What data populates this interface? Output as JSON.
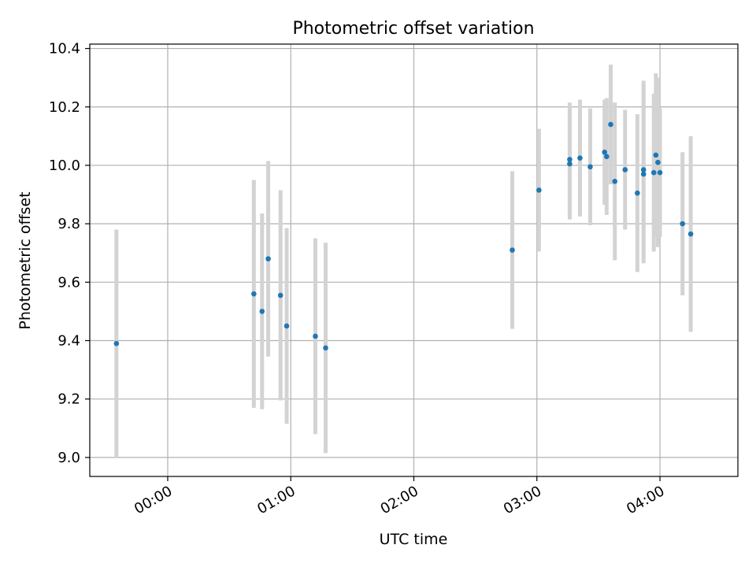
{
  "chart_data": {
    "type": "scatter",
    "title": "Photometric offset variation",
    "xlabel": "UTC time",
    "ylabel": "Photometric offset",
    "x_unit": "UTC time (HH:MM)",
    "xlim": [
      "23:22",
      "04:38"
    ],
    "ylim": [
      8.935,
      10.415
    ],
    "xticks": [
      "00:00",
      "01:00",
      "02:00",
      "03:00",
      "04:00"
    ],
    "yticks": [
      "9.0",
      "9.2",
      "9.4",
      "9.6",
      "9.8",
      "10.0",
      "10.2",
      "10.4"
    ],
    "grid": true,
    "legend": "none",
    "colors": {
      "points": "#1f77b4",
      "errorbars": "#d3d3d3",
      "grid": "#b0b0b0"
    },
    "points": [
      {
        "x": "23:35",
        "y": 9.39,
        "yerr": 0.39
      },
      {
        "x": "00:42",
        "y": 9.56,
        "yerr": 0.39
      },
      {
        "x": "00:46",
        "y": 9.5,
        "yerr": 0.335
      },
      {
        "x": "00:55",
        "y": 9.555,
        "yerr": 0.36
      },
      {
        "x": "00:49",
        "y": 9.68,
        "yerr": 0.335
      },
      {
        "x": "00:58",
        "y": 9.45,
        "yerr": 0.335
      },
      {
        "x": "01:12",
        "y": 9.415,
        "yerr": 0.335
      },
      {
        "x": "01:17",
        "y": 9.375,
        "yerr": 0.36
      },
      {
        "x": "02:48",
        "y": 9.71,
        "yerr": 0.27
      },
      {
        "x": "03:01",
        "y": 9.915,
        "yerr": 0.21
      },
      {
        "x": "03:16",
        "y": 10.005,
        "yerr": 0.19
      },
      {
        "x": "03:16",
        "y": 10.02,
        "yerr": 0.195
      },
      {
        "x": "03:21",
        "y": 10.025,
        "yerr": 0.2
      },
      {
        "x": "03:26",
        "y": 9.995,
        "yerr": 0.2
      },
      {
        "x": "03:33",
        "y": 10.045,
        "yerr": 0.18
      },
      {
        "x": "03:34",
        "y": 10.03,
        "yerr": 0.2
      },
      {
        "x": "03:36",
        "y": 10.14,
        "yerr": 0.205
      },
      {
        "x": "03:38",
        "y": 9.945,
        "yerr": 0.27
      },
      {
        "x": "03:43",
        "y": 9.985,
        "yerr": 0.205
      },
      {
        "x": "03:49",
        "y": 9.905,
        "yerr": 0.27
      },
      {
        "x": "03:52",
        "y": 9.97,
        "yerr": 0.305
      },
      {
        "x": "03:52",
        "y": 9.985,
        "yerr": 0.305
      },
      {
        "x": "03:57",
        "y": 9.975,
        "yerr": 0.27
      },
      {
        "x": "03:58",
        "y": 10.035,
        "yerr": 0.28
      },
      {
        "x": "03:59",
        "y": 10.01,
        "yerr": 0.29
      },
      {
        "x": "04:00",
        "y": 9.975,
        "yerr": 0.22
      },
      {
        "x": "04:11",
        "y": 9.8,
        "yerr": 0.245
      },
      {
        "x": "04:15",
        "y": 9.765,
        "yerr": 0.335
      }
    ]
  }
}
